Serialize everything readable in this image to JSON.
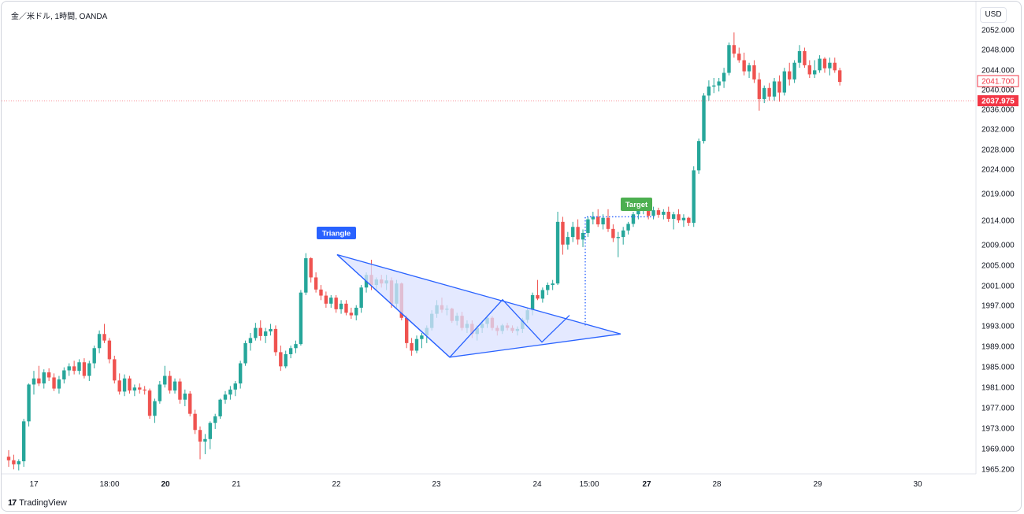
{
  "header": {
    "title": "金／米ドル, 1時間, OANDA",
    "currency_button": "USD"
  },
  "footer": {
    "logo_mark": "17",
    "logo_text": "TradingView"
  },
  "colors": {
    "up": "#26a69a",
    "down": "#ef5350",
    "pattern_fill": "#dbe2ff",
    "pattern_line": "#2962ff",
    "target_tag": "#4caf50",
    "triangle_tag": "#2962ff",
    "current_price": "#f23645"
  },
  "annotations": {
    "triangle_label": "Triangle",
    "target_label": "Target"
  },
  "price_axis": {
    "labels": [
      "2052.000",
      "2048.000",
      "2044.000",
      "2040.000",
      "2036.000",
      "2032.000",
      "2028.000",
      "2024.000",
      "2019.000",
      "2014.000",
      "2009.000",
      "2005.000",
      "2001.000",
      "1997.000",
      "1993.000",
      "1989.000",
      "1985.000",
      "1981.000",
      "1977.000",
      "1973.000",
      "1969.000",
      "1965.200"
    ],
    "last_price": "2041.700",
    "current_price": "2037.975"
  },
  "time_axis": {
    "labels": [
      {
        "text": "17",
        "bold": false
      },
      {
        "text": "18:00",
        "bold": false
      },
      {
        "text": "20",
        "bold": true
      },
      {
        "text": "21",
        "bold": false
      },
      {
        "text": "22",
        "bold": false
      },
      {
        "text": "23",
        "bold": false
      },
      {
        "text": "24",
        "bold": false
      },
      {
        "text": "15:00",
        "bold": false
      },
      {
        "text": "27",
        "bold": true
      },
      {
        "text": "28",
        "bold": false
      },
      {
        "text": "29",
        "bold": false
      },
      {
        "text": "30",
        "bold": false
      }
    ]
  },
  "chart_data": {
    "type": "candlestick",
    "symbol": "金／米ドル",
    "interval": "1時間",
    "source": "OANDA",
    "ylim": [
      1965.2,
      2052.0
    ],
    "candles": [
      [
        1967.5,
        1968.8,
        1965.5,
        1966.8
      ],
      [
        1966.8,
        1967.9,
        1965.0,
        1966.0
      ],
      [
        1966.0,
        1967.0,
        1964.8,
        1966.6
      ],
      [
        1966.6,
        1975.0,
        1965.5,
        1974.5
      ],
      [
        1974.5,
        1982.0,
        1973.5,
        1981.8
      ],
      [
        1981.8,
        1984.5,
        1979.8,
        1983.0
      ],
      [
        1983.0,
        1985.5,
        1981.5,
        1982.0
      ],
      [
        1982.0,
        1984.8,
        1981.0,
        1984.2
      ],
      [
        1984.2,
        1985.0,
        1982.5,
        1983.2
      ],
      [
        1983.2,
        1984.0,
        1980.5,
        1981.0
      ],
      [
        1981.0,
        1983.5,
        1980.0,
        1982.8
      ],
      [
        1982.8,
        1985.2,
        1982.0,
        1984.6
      ],
      [
        1984.6,
        1986.0,
        1983.5,
        1985.4
      ],
      [
        1985.4,
        1986.5,
        1983.8,
        1984.5
      ],
      [
        1984.5,
        1986.8,
        1983.8,
        1986.2
      ],
      [
        1986.2,
        1987.0,
        1983.0,
        1983.5
      ],
      [
        1983.5,
        1986.5,
        1982.5,
        1986.0
      ],
      [
        1986.0,
        1989.5,
        1985.0,
        1989.0
      ],
      [
        1989.0,
        1992.5,
        1988.0,
        1991.8
      ],
      [
        1991.8,
        1993.8,
        1990.0,
        1990.5
      ],
      [
        1990.5,
        1991.0,
        1986.0,
        1986.8
      ],
      [
        1986.8,
        1987.5,
        1982.0,
        1982.6
      ],
      [
        1982.6,
        1984.0,
        1979.8,
        1980.4
      ],
      [
        1980.4,
        1983.8,
        1979.5,
        1983.0
      ],
      [
        1983.0,
        1983.5,
        1980.0,
        1980.6
      ],
      [
        1980.6,
        1981.8,
        1979.5,
        1981.2
      ],
      [
        1981.2,
        1982.0,
        1980.0,
        1980.8
      ],
      [
        1980.8,
        1981.5,
        1979.8,
        1980.6
      ],
      [
        1980.6,
        1981.0,
        1975.0,
        1975.6
      ],
      [
        1975.6,
        1979.0,
        1974.2,
        1978.5
      ],
      [
        1978.5,
        1982.5,
        1978.0,
        1981.8
      ],
      [
        1981.8,
        1985.5,
        1981.2,
        1983.5
      ],
      [
        1983.5,
        1984.5,
        1980.0,
        1980.6
      ],
      [
        1980.6,
        1983.0,
        1980.0,
        1982.4
      ],
      [
        1982.4,
        1983.0,
        1978.0,
        1978.8
      ],
      [
        1978.8,
        1980.8,
        1977.5,
        1980.0
      ],
      [
        1980.0,
        1980.5,
        1975.5,
        1976.0
      ],
      [
        1976.0,
        1976.8,
        1972.0,
        1972.8
      ],
      [
        1972.8,
        1973.5,
        1967.0,
        1970.5
      ],
      [
        1970.5,
        1972.0,
        1968.0,
        1971.0
      ],
      [
        1971.0,
        1974.5,
        1969.0,
        1974.2
      ],
      [
        1974.2,
        1976.0,
        1973.0,
        1975.5
      ],
      [
        1975.5,
        1979.0,
        1975.0,
        1978.8
      ],
      [
        1978.8,
        1980.5,
        1978.0,
        1979.8
      ],
      [
        1979.8,
        1981.5,
        1978.8,
        1980.8
      ],
      [
        1980.8,
        1982.5,
        1979.5,
        1982.0
      ],
      [
        1982.0,
        1986.5,
        1981.0,
        1986.0
      ],
      [
        1986.0,
        1990.5,
        1985.5,
        1990.0
      ],
      [
        1990.0,
        1992.0,
        1988.5,
        1991.0
      ],
      [
        1991.0,
        1994.0,
        1990.5,
        1993.0
      ],
      [
        1993.0,
        1994.5,
        1990.5,
        1991.4
      ],
      [
        1991.4,
        1993.0,
        1990.0,
        1992.3
      ],
      [
        1992.3,
        1993.8,
        1991.5,
        1992.8
      ],
      [
        1992.8,
        1993.5,
        1987.5,
        1988.2
      ],
      [
        1988.2,
        1989.5,
        1984.5,
        1985.4
      ],
      [
        1985.4,
        1988.5,
        1985.0,
        1987.8
      ],
      [
        1987.8,
        1989.5,
        1987.0,
        1989.0
      ],
      [
        1989.0,
        1990.5,
        1988.0,
        1989.8
      ],
      [
        1989.8,
        2000.5,
        1989.5,
        2000.0
      ],
      [
        2000.0,
        2007.8,
        1999.5,
        2006.8
      ],
      [
        2006.8,
        2007.0,
        2002.0,
        2003.0
      ],
      [
        2003.0,
        2004.0,
        2000.0,
        2000.6
      ],
      [
        2000.6,
        2001.5,
        1998.5,
        1999.4
      ],
      [
        1999.4,
        2000.2,
        1997.0,
        1997.8
      ],
      [
        1997.8,
        1999.5,
        1997.0,
        1999.0
      ],
      [
        1999.0,
        1999.5,
        1996.0,
        1996.7
      ],
      [
        1996.7,
        1998.5,
        1995.8,
        1997.8
      ],
      [
        1997.8,
        1998.5,
        1995.5,
        1996.0
      ],
      [
        1996.0,
        1997.0,
        1994.8,
        1995.5
      ],
      [
        1995.5,
        1997.5,
        1994.5,
        1997.0
      ],
      [
        1997.0,
        2001.5,
        1996.0,
        2001.0
      ],
      [
        2001.0,
        2004.0,
        2000.0,
        2003.5
      ],
      [
        2003.5,
        2006.5,
        2000.5,
        2001.5
      ],
      [
        2001.5,
        2003.0,
        2000.5,
        2002.6
      ],
      [
        2002.6,
        2003.5,
        2001.0,
        2001.8
      ],
      [
        2001.8,
        2003.5,
        2000.5,
        2002.4
      ],
      [
        2002.4,
        2003.0,
        1997.0,
        1997.8
      ],
      [
        1997.8,
        2002.5,
        1996.8,
        2001.8
      ],
      [
        2001.8,
        2002.0,
        1994.5,
        1995.0
      ],
      [
        1995.0,
        1995.5,
        1989.0,
        1990.0
      ],
      [
        1990.0,
        1991.0,
        1987.5,
        1988.5
      ],
      [
        1988.5,
        1991.5,
        1988.0,
        1990.8
      ],
      [
        1990.8,
        1992.0,
        1989.0,
        1991.5
      ],
      [
        1991.5,
        1993.5,
        1990.0,
        1993.0
      ],
      [
        1993.0,
        1996.5,
        1992.5,
        1995.8
      ],
      [
        1995.8,
        1998.5,
        1995.0,
        1997.5
      ],
      [
        1997.5,
        1999.0,
        1996.0,
        1996.6
      ],
      [
        1996.6,
        1997.5,
        1995.5,
        1996.8
      ],
      [
        1996.8,
        1997.0,
        1994.0,
        1994.4
      ],
      [
        1994.4,
        1996.0,
        1993.5,
        1995.4
      ],
      [
        1995.4,
        1996.2,
        1992.5,
        1993.0
      ],
      [
        1993.0,
        1994.5,
        1992.0,
        1993.8
      ],
      [
        1993.8,
        1994.5,
        1991.0,
        1991.8
      ],
      [
        1991.8,
        1993.5,
        1990.5,
        1993.0
      ],
      [
        1993.0,
        1994.5,
        1992.0,
        1993.8
      ],
      [
        1993.8,
        1995.5,
        1993.0,
        1995.0
      ],
      [
        1995.0,
        1995.3,
        1992.5,
        1993.0
      ],
      [
        1993.0,
        1993.5,
        1991.5,
        1992.4
      ],
      [
        1992.4,
        1993.8,
        1991.8,
        1993.5
      ],
      [
        1993.5,
        1994.0,
        1992.5,
        1993.0
      ],
      [
        1993.0,
        1993.5,
        1992.0,
        1992.4
      ],
      [
        1992.4,
        1993.3,
        1991.5,
        1992.8
      ],
      [
        1992.8,
        1995.0,
        1992.0,
        1994.6
      ],
      [
        1994.6,
        1997.0,
        1994.0,
        1996.5
      ],
      [
        1996.5,
        2000.0,
        1995.5,
        1999.5
      ],
      [
        1999.5,
        2002.5,
        1998.5,
        1998.8
      ],
      [
        1998.8,
        2001.0,
        1998.0,
        2000.5
      ],
      [
        2000.5,
        2002.0,
        1999.5,
        2001.5
      ],
      [
        2001.5,
        2002.5,
        2000.5,
        2001.8
      ],
      [
        2001.8,
        2016.0,
        2001.5,
        2014.0
      ],
      [
        2014.0,
        2015.0,
        2007.5,
        2009.5
      ],
      [
        2009.5,
        2012.0,
        2008.5,
        2011.0
      ],
      [
        2011.0,
        2014.0,
        2010.0,
        2013.0
      ],
      [
        2013.0,
        2014.5,
        2009.5,
        2010.5
      ],
      [
        2010.5,
        2012.5,
        2009.0,
        2011.8
      ],
      [
        2011.8,
        2015.0,
        2011.0,
        2014.5
      ],
      [
        2014.5,
        2016.0,
        2013.5,
        2015.0
      ],
      [
        2015.0,
        2016.5,
        2013.0,
        2013.5
      ],
      [
        2013.5,
        2015.5,
        2012.5,
        2014.8
      ],
      [
        2014.8,
        2016.5,
        2012.0,
        2012.6
      ],
      [
        2012.6,
        2013.5,
        2010.0,
        2010.8
      ],
      [
        2010.8,
        2012.0,
        2007.0,
        2011.0
      ],
      [
        2011.0,
        2013.0,
        2009.5,
        2012.3
      ],
      [
        2012.3,
        2014.0,
        2011.5,
        2013.6
      ],
      [
        2013.6,
        2016.0,
        2013.0,
        2015.5
      ],
      [
        2015.5,
        2017.0,
        2014.5,
        2016.5
      ],
      [
        2016.5,
        2018.5,
        2015.5,
        2017.0
      ],
      [
        2017.0,
        2017.5,
        2014.5,
        2015.2
      ],
      [
        2015.2,
        2017.0,
        2014.5,
        2016.3
      ],
      [
        2016.3,
        2016.8,
        2014.8,
        2015.4
      ],
      [
        2015.4,
        2016.5,
        2014.5,
        2016.0
      ],
      [
        2016.0,
        2017.0,
        2014.0,
        2014.6
      ],
      [
        2014.6,
        2016.0,
        2012.5,
        2015.5
      ],
      [
        2015.5,
        2016.5,
        2013.8,
        2014.3
      ],
      [
        2014.3,
        2015.5,
        2013.0,
        2014.8
      ],
      [
        2014.8,
        2015.0,
        2013.2,
        2013.8
      ],
      [
        2013.8,
        2025.0,
        2013.0,
        2024.2
      ],
      [
        2024.2,
        2030.5,
        2023.5,
        2030.0
      ],
      [
        2030.0,
        2039.5,
        2029.5,
        2039.0
      ],
      [
        2039.0,
        2042.0,
        2038.0,
        2040.8
      ],
      [
        2040.8,
        2042.5,
        2039.5,
        2041.0
      ],
      [
        2041.0,
        2042.5,
        2039.8,
        2041.8
      ],
      [
        2041.8,
        2044.5,
        2040.5,
        2043.5
      ],
      [
        2043.5,
        2049.5,
        2043.0,
        2049.0
      ],
      [
        2049.0,
        2051.5,
        2046.5,
        2047.3
      ],
      [
        2047.3,
        2048.5,
        2045.5,
        2046.0
      ],
      [
        2046.0,
        2047.5,
        2043.0,
        2043.8
      ],
      [
        2043.8,
        2045.5,
        2042.5,
        2045.0
      ],
      [
        2045.0,
        2046.0,
        2041.5,
        2042.2
      ],
      [
        2042.2,
        2043.5,
        2036.0,
        2038.3
      ],
      [
        2038.3,
        2041.0,
        2037.5,
        2040.5
      ],
      [
        2040.5,
        2041.5,
        2038.0,
        2038.8
      ],
      [
        2038.8,
        2042.5,
        2038.0,
        2041.8
      ],
      [
        2041.8,
        2043.0,
        2037.8,
        2039.6
      ],
      [
        2039.6,
        2044.5,
        2039.0,
        2043.8
      ],
      [
        2043.8,
        2045.5,
        2041.0,
        2042.2
      ],
      [
        2042.2,
        2046.0,
        2041.5,
        2045.5
      ],
      [
        2045.5,
        2049.0,
        2044.5,
        2047.8
      ],
      [
        2047.8,
        2048.5,
        2044.5,
        2045.0
      ],
      [
        2045.0,
        2046.0,
        2042.5,
        2043.2
      ],
      [
        2043.2,
        2046.0,
        2042.5,
        2044.0
      ],
      [
        2044.0,
        2047.0,
        2043.5,
        2046.3
      ],
      [
        2046.3,
        2046.6,
        2043.5,
        2044.4
      ],
      [
        2044.4,
        2046.5,
        2043.0,
        2045.5
      ],
      [
        2045.5,
        2046.5,
        2043.5,
        2044.0
      ],
      [
        2044.0,
        2044.5,
        2041.0,
        2041.7
      ]
    ],
    "triangle": {
      "outline": [
        [
          2007.5,
          0
        ],
        [
          1987.2,
          0
        ],
        [
          1991.8,
          0
        ]
      ],
      "zigzag": [
        2007.5,
        1987.2,
        1998.6,
        1990.2,
        1995.5
      ]
    },
    "target_price": 2015.0
  }
}
